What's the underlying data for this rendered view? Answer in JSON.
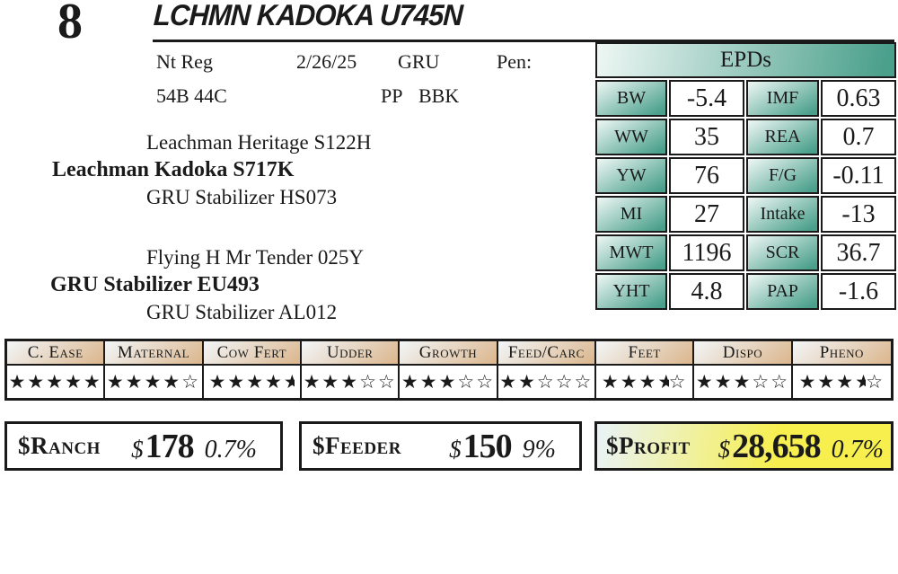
{
  "lot": {
    "number": "8",
    "title": "LCHMN KADOKA U745N"
  },
  "info": {
    "reg": "Nt Reg",
    "date": "2/26/25",
    "herd": "GRU",
    "pen_label": "Pen:",
    "ids": "54B 44C",
    "polled": "PP",
    "color_code": "BBK"
  },
  "pedigree": {
    "sire_line": {
      "top": "Leachman Heritage S122H",
      "name": "Leachman Kadoka S717K",
      "bottom": "GRU Stabilizer HS073"
    },
    "dam_line": {
      "top": "Flying H Mr Tender 025Y",
      "name": "GRU Stabilizer EU493",
      "bottom": "GRU Stabilizer AL012"
    }
  },
  "epds": {
    "title": "EPDs",
    "rows": [
      {
        "label1": "BW",
        "value1": "-5.4",
        "label2": "IMF",
        "value2": "0.63"
      },
      {
        "label1": "WW",
        "value1": "35",
        "label2": "REA",
        "value2": "0.7"
      },
      {
        "label1": "YW",
        "value1": "76",
        "label2": "F/G",
        "value2": "-0.11"
      },
      {
        "label1": "MI",
        "value1": "27",
        "label2": "Intake",
        "value2": "-13"
      },
      {
        "label1": "MWT",
        "value1": "1196",
        "label2": "SCR",
        "value2": "36.7"
      },
      {
        "label1": "YHT",
        "value1": "4.8",
        "label2": "PAP",
        "value2": "-1.6"
      }
    ]
  },
  "ratings": {
    "max_stars": 5,
    "columns": [
      {
        "label": "C. Ease",
        "stars": 5
      },
      {
        "label": "Maternal",
        "stars": 4
      },
      {
        "label": "Cow Fert",
        "stars": 4.5
      },
      {
        "label": "Udder",
        "stars": 3
      },
      {
        "label": "Growth",
        "stars": 3
      },
      {
        "label": "Feed/Carc",
        "stars": 2
      },
      {
        "label": "Feet",
        "stars": 3.5
      },
      {
        "label": "Dispo",
        "stars": 3
      },
      {
        "label": "Pheno",
        "stars": 3.5
      }
    ]
  },
  "value_boxes": [
    {
      "label": "$Ranch",
      "currency": "$",
      "value": "178",
      "pct": "0.7%",
      "highlight": false
    },
    {
      "label": "$Feeder",
      "currency": "$",
      "value": "150",
      "pct": "9%",
      "highlight": false
    },
    {
      "label": "$Profit",
      "currency": "$",
      "value": "28,658",
      "pct": "0.7%",
      "highlight": true
    }
  ],
  "colors": {
    "teal": "#4ba08c",
    "teal_light": "#eef7f4",
    "tan": "#dcb992",
    "tan_light": "#f3f6f8",
    "profit_yellow": "#f7ef4d",
    "profit_blue": "#e9f3f8",
    "ink": "#1a1a1a"
  }
}
